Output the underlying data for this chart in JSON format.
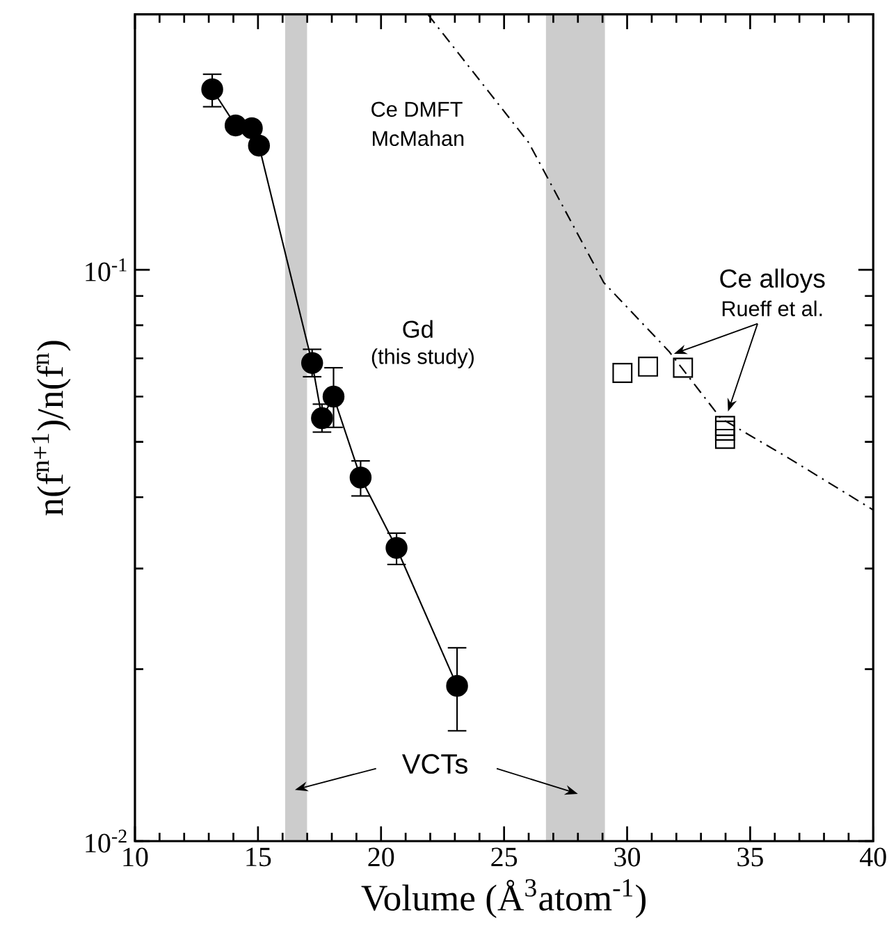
{
  "chart_data": {
    "type": "line",
    "xlabel": "Volume (Å$^{3}$atom$^{-1}$)",
    "ylabel": "n(f$^{n+1}$)/n(f$^{n}$)",
    "xlim": [
      10,
      40
    ],
    "xticks": [
      10,
      15,
      20,
      25,
      30,
      35,
      40
    ],
    "ylim": [
      0.01,
      0.28
    ],
    "yticks": [
      {
        "value": 0.01,
        "label": "10$^{-2}$"
      },
      {
        "value": 0.1,
        "label": "10$^{-1}$"
      }
    ],
    "log": "y",
    "series": [
      {
        "color": "#000000",
        "marker": "circle",
        "x": [
          13.14,
          14.09,
          14.75,
          15.04,
          17.2,
          17.6,
          18.07,
          19.17,
          20.63,
          23.09
        ],
        "values": [
          0.207,
          0.179,
          0.177,
          0.165,
          0.0687,
          0.055,
          0.06,
          0.0433,
          0.0326,
          0.0187
        ],
        "errors": [
          [
            0.193,
            0.22
          ],
          null,
          null,
          null,
          [
            0.065,
            0.0726
          ],
          [
            0.052,
            0.0582
          ],
          [
            0.053,
            0.0674
          ],
          [
            0.0402,
            0.0463
          ],
          [
            0.0305,
            0.0346
          ],
          [
            0.0156,
            0.0218
          ]
        ]
      },
      {
        "type": "scatter",
        "color": "#000000",
        "marker": "square",
        "x": [
          29.81,
          30.85,
          32.27,
          33.98,
          33.98,
          33.98
        ],
        "values": [
          0.066,
          0.0677,
          0.0674,
          0.0533,
          0.0523,
          0.0506
        ]
      },
      {
        "color": "#000000",
        "marker": "none",
        "line_style": "dashdot",
        "x": [
          21.9,
          26.0,
          29.05,
          31.7,
          33.8,
          36.5,
          40
        ],
        "values": [
          0.28,
          0.167,
          0.095,
          0.072,
          0.055,
          0.047,
          0.038
        ]
      }
    ],
    "bands": [
      {
        "axis": "x",
        "from": 16.1,
        "to": 17.0,
        "color": "#cccccc"
      },
      {
        "axis": "x",
        "from": 26.7,
        "to": 29.1,
        "color": "#cccccc"
      }
    ],
    "annotations": [
      "Ce DMFT",
      "McMahan",
      "Gd",
      "(this study)",
      {
        "text": "Ce alloys",
        "x": 31.9,
        "y": 0.0713
      },
      "Rueff et al.",
      "VCTs"
    ]
  }
}
